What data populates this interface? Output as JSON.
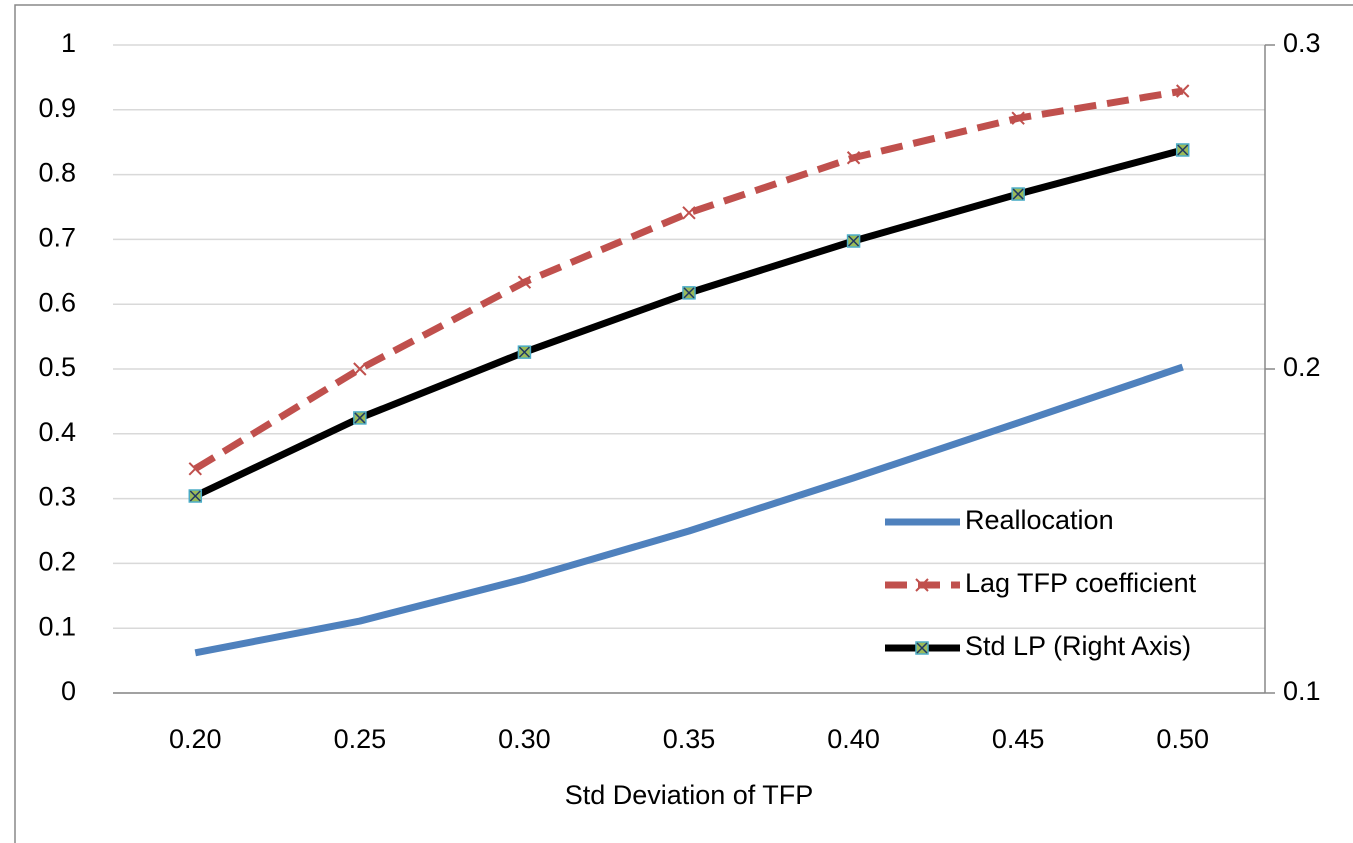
{
  "chart_data": {
    "type": "line",
    "x_label": "Std Deviation of TFP",
    "categories": [
      "0.20",
      "0.25",
      "0.30",
      "0.35",
      "0.40",
      "0.45",
      "0.50"
    ],
    "ylim": [
      0,
      1
    ],
    "yticks": [
      0,
      0.1,
      0.2,
      0.3,
      0.4,
      0.5,
      0.6,
      0.7,
      0.8,
      0.9,
      1
    ],
    "y2lim": [
      0.1,
      0.3
    ],
    "y2ticks": [
      0.1,
      0.2,
      0.3
    ],
    "grid": true,
    "legend": "lower-right",
    "series": [
      {
        "name": "Reallocation",
        "color": "#4f81bd",
        "dash": false,
        "marker": "none",
        "values": [
          0.062,
          0.111,
          0.176,
          0.25,
          0.332,
          0.417,
          0.503
        ]
      },
      {
        "name": "Lag TFP coefficient",
        "color": "#c0504d",
        "dash": true,
        "marker": "x",
        "values": [
          0.346,
          0.5,
          0.634,
          0.741,
          0.826,
          0.887,
          0.929
        ]
      },
      {
        "name": "Std LP (Right Axis)",
        "color": "#000000",
        "dash": false,
        "marker": "square",
        "axis": "y2",
        "values": [
          0.1608,
          0.1849,
          0.2052,
          0.2235,
          0.2395,
          0.254,
          0.2676
        ]
      }
    ]
  }
}
